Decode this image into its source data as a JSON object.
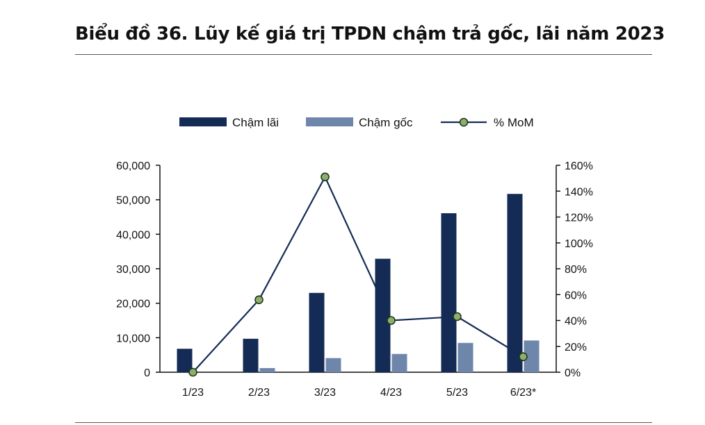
{
  "title": "Biểu đồ 36. Lũy kế giá trị TPDN chậm trả gốc, lãi năm 2023",
  "chart_data": {
    "type": "bar",
    "categories": [
      "1/23",
      "2/23",
      "3/23",
      "4/23",
      "5/23",
      "6/23*"
    ],
    "series": [
      {
        "name": "Chậm lãi",
        "kind": "bar",
        "axis": "left",
        "color": "#142b55",
        "values": [
          6800,
          9700,
          23000,
          32900,
          46100,
          51700
        ]
      },
      {
        "name": "Chậm gốc",
        "kind": "bar",
        "axis": "left",
        "color": "#6f86ab",
        "values": [
          0,
          1200,
          4100,
          5300,
          8500,
          9200
        ]
      },
      {
        "name": "% MoM",
        "kind": "line",
        "axis": "right",
        "color": "#142b55",
        "marker_color": "#8fae6e",
        "values": [
          0,
          56,
          151,
          40,
          43,
          12
        ]
      }
    ],
    "y_left": {
      "min": 0,
      "max": 60000,
      "ticks": [
        "0",
        "10,000",
        "20,000",
        "30,000",
        "40,000",
        "50,000",
        "60,000"
      ]
    },
    "y_right": {
      "min": 0,
      "max": 160,
      "ticks": [
        "0%",
        "20%",
        "40%",
        "60%",
        "80%",
        "100%",
        "120%",
        "140%",
        "160%"
      ]
    },
    "legend_position": "top",
    "grid": false
  }
}
